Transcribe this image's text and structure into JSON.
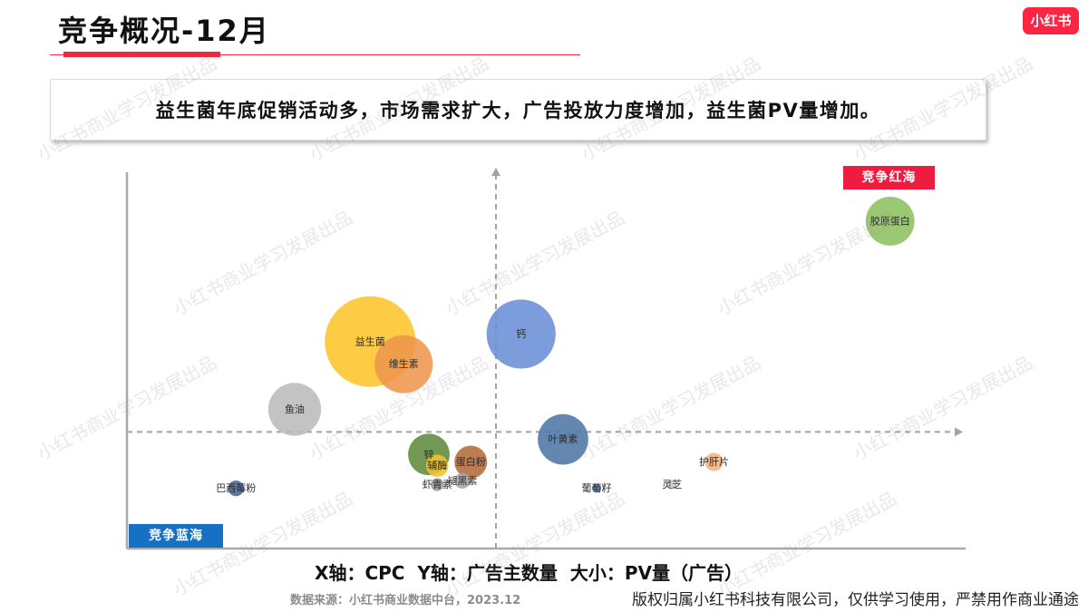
{
  "slide": {
    "title": "竞争概况-12月",
    "brand_logo": "小红书",
    "callout": "益生菌年底促销活动多，市场需求扩大，广告投放力度增加，益生菌PV量增加。",
    "axis_caption": "X轴：CPC  Y轴：广告主数量  大小：PV量（广告）",
    "source": "数据来源：小红书商业数据中台，2023.12",
    "copyright": "版权归属小红书科技有限公司，仅供学习使用，严禁用作商业通途",
    "watermark": "小红书商业学习发展出品"
  },
  "colors": {
    "brand_red": "#FF2442",
    "accent_red": "#EE2A43",
    "red_ocean": "#EE1C3F",
    "blue_ocean": "#1670C4"
  },
  "chart_data": {
    "type": "scatter",
    "xlim": [
      0,
      100
    ],
    "ylim": [
      0,
      100
    ],
    "grid": false,
    "legend": "none",
    "quadrant_dividers": {
      "x": 44,
      "y": 31
    },
    "quadrant_labels": {
      "top_right": "竞争红海",
      "bottom_left": "竞争蓝海"
    },
    "points": [
      {
        "label": "胶原蛋白",
        "x": 91,
        "y": 87,
        "size": 29,
        "color": "#8DC060"
      },
      {
        "label": "益生菌",
        "x": 29,
        "y": 55,
        "size": 100,
        "color": "#FEC42A"
      },
      {
        "label": "维生素",
        "x": 33,
        "y": 49,
        "size": 41,
        "color": "#EE964C"
      },
      {
        "label": "钙",
        "x": 47,
        "y": 57,
        "size": 58,
        "color": "#6A8ED6"
      },
      {
        "label": "鱼油",
        "x": 20,
        "y": 37,
        "size": 34,
        "color": "#BBBBBB"
      },
      {
        "label": "叶黄素",
        "x": 52,
        "y": 29,
        "size": 31,
        "color": "#4E76A6"
      },
      {
        "label": "护肝片",
        "x": 70,
        "y": 23,
        "size": 4,
        "color": "#F5B07E"
      },
      {
        "label": "巴西莓粉",
        "x": 13,
        "y": 16,
        "size": 3,
        "color": "#4B6795"
      },
      {
        "label": "锌",
        "x": 36,
        "y": 25,
        "size": 21,
        "color": "#5E8A3C"
      },
      {
        "label": "辅酶",
        "x": 37,
        "y": 22,
        "size": 6,
        "color": "#F2C12E"
      },
      {
        "label": "蛋白粉",
        "x": 41,
        "y": 23,
        "size": 13,
        "color": "#B36B3B"
      },
      {
        "label": "虾青素",
        "x": 37,
        "y": 17,
        "size": 2,
        "color": "#9A9A9A"
      },
      {
        "label": "褪黑素",
        "x": 40,
        "y": 18,
        "size": 3,
        "color": "#A5A5A5"
      },
      {
        "label": "葡萄籽",
        "x": 56,
        "y": 16,
        "size": 1,
        "color": "#5A7AA8"
      },
      {
        "label": "灵芝",
        "x": 65,
        "y": 17,
        "size": 1,
        "color": "#C7C7C7"
      }
    ]
  }
}
